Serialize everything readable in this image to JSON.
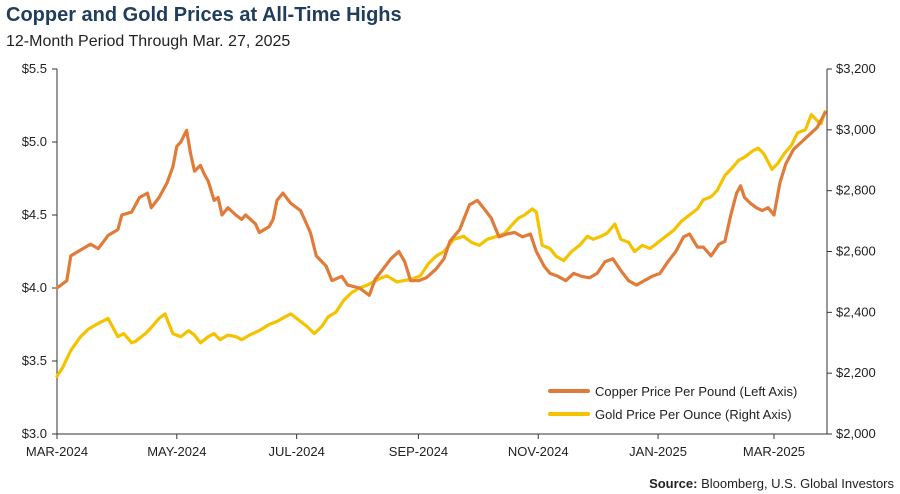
{
  "header": {
    "title": "Copper and Gold Prices at All-Time Highs",
    "subtitle": "12-Month Period Through Mar. 27, 2025"
  },
  "source": {
    "label": "Source:",
    "text": " Bloomberg, U.S. Global Investors"
  },
  "colors": {
    "copper": "#e07b39",
    "gold": "#f5c200",
    "axis": "#333333"
  },
  "chart_data": {
    "type": "line",
    "x_tick_labels": [
      "MAR-2024",
      "MAY-2024",
      "JUL-2024",
      "SEP-2024",
      "NOV-2024",
      "JAN-2025",
      "MAR-2025"
    ],
    "x_range": [
      "2024-03-01",
      "2025-03-28"
    ],
    "x_tick_dates": [
      "2024-03-01",
      "2024-05-01",
      "2024-07-01",
      "2024-09-01",
      "2024-11-01",
      "2025-01-01",
      "2025-03-01"
    ],
    "y_left": {
      "label": "",
      "range": [
        3.0,
        5.5
      ],
      "ticks": [
        3.0,
        3.5,
        4.0,
        4.5,
        5.0,
        5.5
      ],
      "tick_labels": [
        "$3.0",
        "$3.5",
        "$4.0",
        "$4.5",
        "$5.0",
        "$5.5"
      ]
    },
    "y_right": {
      "label": "",
      "range": [
        2000,
        3200
      ],
      "ticks": [
        2000,
        2200,
        2400,
        2600,
        2800,
        3000,
        3200
      ],
      "tick_labels": [
        "$2,000",
        "$2,200",
        "$2,400",
        "$2,600",
        "$2,800",
        "$3,000",
        "$3,200"
      ]
    },
    "grid": false,
    "legend_position": "bottom-right",
    "series": [
      {
        "name": "Copper Price Per Pound (Left Axis)",
        "axis": "left",
        "points": [
          [
            "2024-03-01",
            4.0
          ],
          [
            "2024-03-06",
            4.05
          ],
          [
            "2024-03-08",
            4.22
          ],
          [
            "2024-03-13",
            4.26
          ],
          [
            "2024-03-18",
            4.3
          ],
          [
            "2024-03-22",
            4.27
          ],
          [
            "2024-03-27",
            4.36
          ],
          [
            "2024-04-01",
            4.4
          ],
          [
            "2024-04-03",
            4.5
          ],
          [
            "2024-04-08",
            4.52
          ],
          [
            "2024-04-12",
            4.62
          ],
          [
            "2024-04-16",
            4.65
          ],
          [
            "2024-04-18",
            4.55
          ],
          [
            "2024-04-22",
            4.62
          ],
          [
            "2024-04-26",
            4.72
          ],
          [
            "2024-04-29",
            4.83
          ],
          [
            "2024-05-01",
            4.97
          ],
          [
            "2024-05-03",
            5.0
          ],
          [
            "2024-05-06",
            5.08
          ],
          [
            "2024-05-08",
            4.92
          ],
          [
            "2024-05-10",
            4.8
          ],
          [
            "2024-05-13",
            4.84
          ],
          [
            "2024-05-15",
            4.78
          ],
          [
            "2024-05-17",
            4.73
          ],
          [
            "2024-05-20",
            4.6
          ],
          [
            "2024-05-22",
            4.62
          ],
          [
            "2024-05-24",
            4.5
          ],
          [
            "2024-05-27",
            4.55
          ],
          [
            "2024-05-31",
            4.5
          ],
          [
            "2024-06-03",
            4.47
          ],
          [
            "2024-06-05",
            4.5
          ],
          [
            "2024-06-10",
            4.44
          ],
          [
            "2024-06-12",
            4.38
          ],
          [
            "2024-06-17",
            4.42
          ],
          [
            "2024-06-19",
            4.47
          ],
          [
            "2024-06-21",
            4.6
          ],
          [
            "2024-06-24",
            4.65
          ],
          [
            "2024-06-28",
            4.58
          ],
          [
            "2024-07-03",
            4.53
          ],
          [
            "2024-07-08",
            4.38
          ],
          [
            "2024-07-11",
            4.22
          ],
          [
            "2024-07-16",
            4.15
          ],
          [
            "2024-07-19",
            4.05
          ],
          [
            "2024-07-24",
            4.08
          ],
          [
            "2024-07-27",
            4.02
          ],
          [
            "2024-08-02",
            4.0
          ],
          [
            "2024-08-07",
            3.95
          ],
          [
            "2024-08-10",
            4.06
          ],
          [
            "2024-08-14",
            4.13
          ],
          [
            "2024-08-18",
            4.2
          ],
          [
            "2024-08-22",
            4.25
          ],
          [
            "2024-08-25",
            4.18
          ],
          [
            "2024-08-28",
            4.05
          ],
          [
            "2024-09-01",
            4.05
          ],
          [
            "2024-09-05",
            4.07
          ],
          [
            "2024-09-10",
            4.13
          ],
          [
            "2024-09-14",
            4.2
          ],
          [
            "2024-09-17",
            4.32
          ],
          [
            "2024-09-22",
            4.4
          ],
          [
            "2024-09-27",
            4.57
          ],
          [
            "2024-10-01",
            4.6
          ],
          [
            "2024-10-04",
            4.55
          ],
          [
            "2024-10-08",
            4.48
          ],
          [
            "2024-10-12",
            4.35
          ],
          [
            "2024-10-16",
            4.37
          ],
          [
            "2024-10-20",
            4.38
          ],
          [
            "2024-10-24",
            4.35
          ],
          [
            "2024-10-28",
            4.37
          ],
          [
            "2024-10-31",
            4.25
          ],
          [
            "2024-11-04",
            4.15
          ],
          [
            "2024-11-07",
            4.1
          ],
          [
            "2024-11-11",
            4.08
          ],
          [
            "2024-11-15",
            4.05
          ],
          [
            "2024-11-19",
            4.1
          ],
          [
            "2024-11-23",
            4.08
          ],
          [
            "2024-11-27",
            4.07
          ],
          [
            "2024-12-01",
            4.1
          ],
          [
            "2024-12-05",
            4.18
          ],
          [
            "2024-12-09",
            4.2
          ],
          [
            "2024-12-13",
            4.12
          ],
          [
            "2024-12-17",
            4.05
          ],
          [
            "2024-12-21",
            4.02
          ],
          [
            "2024-12-25",
            4.05
          ],
          [
            "2024-12-29",
            4.08
          ],
          [
            "2025-01-02",
            4.1
          ],
          [
            "2025-01-06",
            4.18
          ],
          [
            "2025-01-10",
            4.25
          ],
          [
            "2025-01-14",
            4.35
          ],
          [
            "2025-01-17",
            4.37
          ],
          [
            "2025-01-21",
            4.28
          ],
          [
            "2025-01-24",
            4.28
          ],
          [
            "2025-01-28",
            4.22
          ],
          [
            "2025-02-01",
            4.3
          ],
          [
            "2025-02-04",
            4.32
          ],
          [
            "2025-02-07",
            4.5
          ],
          [
            "2025-02-10",
            4.65
          ],
          [
            "2025-02-12",
            4.7
          ],
          [
            "2025-02-14",
            4.62
          ],
          [
            "2025-02-17",
            4.58
          ],
          [
            "2025-02-20",
            4.55
          ],
          [
            "2025-02-23",
            4.53
          ],
          [
            "2025-02-26",
            4.55
          ],
          [
            "2025-03-01",
            4.5
          ],
          [
            "2025-03-04",
            4.72
          ],
          [
            "2025-03-07",
            4.85
          ],
          [
            "2025-03-11",
            4.95
          ],
          [
            "2025-03-15",
            5.0
          ],
          [
            "2025-03-19",
            5.05
          ],
          [
            "2025-03-23",
            5.1
          ],
          [
            "2025-03-25",
            5.15
          ],
          [
            "2025-03-27",
            5.2
          ]
        ]
      },
      {
        "name": "Gold Price Per Ounce (Right Axis)",
        "axis": "right",
        "points": [
          [
            "2024-03-01",
            2190
          ],
          [
            "2024-03-04",
            2220
          ],
          [
            "2024-03-08",
            2275
          ],
          [
            "2024-03-13",
            2320
          ],
          [
            "2024-03-17",
            2345
          ],
          [
            "2024-03-21",
            2360
          ],
          [
            "2024-03-27",
            2380
          ],
          [
            "2024-04-01",
            2320
          ],
          [
            "2024-04-04",
            2330
          ],
          [
            "2024-04-08",
            2300
          ],
          [
            "2024-04-10",
            2305
          ],
          [
            "2024-04-15",
            2330
          ],
          [
            "2024-04-18",
            2350
          ],
          [
            "2024-04-22",
            2380
          ],
          [
            "2024-04-25",
            2395
          ],
          [
            "2024-04-29",
            2330
          ],
          [
            "2024-05-03",
            2320
          ],
          [
            "2024-05-07",
            2340
          ],
          [
            "2024-05-10",
            2325
          ],
          [
            "2024-05-13",
            2300
          ],
          [
            "2024-05-17",
            2320
          ],
          [
            "2024-05-20",
            2330
          ],
          [
            "2024-05-23",
            2310
          ],
          [
            "2024-05-27",
            2325
          ],
          [
            "2024-05-31",
            2320
          ],
          [
            "2024-06-03",
            2310
          ],
          [
            "2024-06-07",
            2325
          ],
          [
            "2024-06-12",
            2340
          ],
          [
            "2024-06-17",
            2360
          ],
          [
            "2024-06-21",
            2370
          ],
          [
            "2024-06-25",
            2385
          ],
          [
            "2024-06-28",
            2395
          ],
          [
            "2024-07-03",
            2370
          ],
          [
            "2024-07-06",
            2355
          ],
          [
            "2024-07-10",
            2330
          ],
          [
            "2024-07-14",
            2355
          ],
          [
            "2024-07-17",
            2385
          ],
          [
            "2024-07-21",
            2400
          ],
          [
            "2024-07-25",
            2440
          ],
          [
            "2024-07-29",
            2465
          ],
          [
            "2024-08-02",
            2480
          ],
          [
            "2024-08-06",
            2490
          ],
          [
            "2024-08-09",
            2500
          ],
          [
            "2024-08-12",
            2510
          ],
          [
            "2024-08-16",
            2520
          ],
          [
            "2024-08-21",
            2500
          ],
          [
            "2024-08-25",
            2505
          ],
          [
            "2024-08-29",
            2510
          ],
          [
            "2024-09-02",
            2520
          ],
          [
            "2024-09-06",
            2560
          ],
          [
            "2024-09-10",
            2585
          ],
          [
            "2024-09-14",
            2600
          ],
          [
            "2024-09-19",
            2640
          ],
          [
            "2024-09-24",
            2650
          ],
          [
            "2024-09-28",
            2630
          ],
          [
            "2024-10-02",
            2620
          ],
          [
            "2024-10-06",
            2640
          ],
          [
            "2024-10-11",
            2650
          ],
          [
            "2024-10-15",
            2660
          ],
          [
            "2024-10-19",
            2690
          ],
          [
            "2024-10-22",
            2710
          ],
          [
            "2024-10-25",
            2720
          ],
          [
            "2024-10-29",
            2740
          ],
          [
            "2024-10-31",
            2730
          ],
          [
            "2024-11-03",
            2620
          ],
          [
            "2024-11-07",
            2610
          ],
          [
            "2024-11-10",
            2585
          ],
          [
            "2024-11-14",
            2570
          ],
          [
            "2024-11-18",
            2600
          ],
          [
            "2024-11-22",
            2620
          ],
          [
            "2024-11-26",
            2650
          ],
          [
            "2024-11-29",
            2640
          ],
          [
            "2024-12-03",
            2650
          ],
          [
            "2024-12-06",
            2660
          ],
          [
            "2024-12-10",
            2690
          ],
          [
            "2024-12-13",
            2640
          ],
          [
            "2024-12-17",
            2630
          ],
          [
            "2024-12-20",
            2600
          ],
          [
            "2024-12-24",
            2620
          ],
          [
            "2024-12-28",
            2610
          ],
          [
            "2025-01-01",
            2630
          ],
          [
            "2025-01-05",
            2650
          ],
          [
            "2025-01-09",
            2670
          ],
          [
            "2025-01-13",
            2700
          ],
          [
            "2025-01-17",
            2720
          ],
          [
            "2025-01-21",
            2740
          ],
          [
            "2025-01-24",
            2770
          ],
          [
            "2025-01-28",
            2780
          ],
          [
            "2025-01-31",
            2800
          ],
          [
            "2025-02-04",
            2850
          ],
          [
            "2025-02-07",
            2870
          ],
          [
            "2025-02-11",
            2900
          ],
          [
            "2025-02-14",
            2910
          ],
          [
            "2025-02-18",
            2930
          ],
          [
            "2025-02-21",
            2940
          ],
          [
            "2025-02-24",
            2920
          ],
          [
            "2025-02-28",
            2870
          ],
          [
            "2025-03-03",
            2890
          ],
          [
            "2025-03-06",
            2920
          ],
          [
            "2025-03-10",
            2950
          ],
          [
            "2025-03-13",
            2990
          ],
          [
            "2025-03-17",
            3000
          ],
          [
            "2025-03-20",
            3050
          ],
          [
            "2025-03-23",
            3030
          ],
          [
            "2025-03-25",
            3020
          ],
          [
            "2025-03-27",
            3060
          ]
        ]
      }
    ]
  }
}
